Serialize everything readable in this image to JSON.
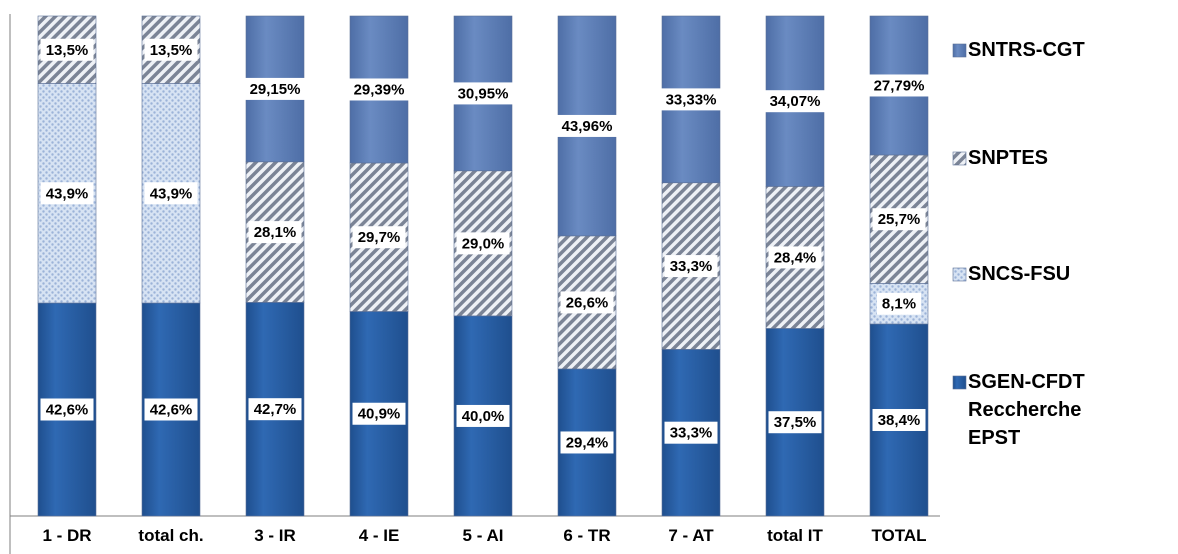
{
  "chart_data": {
    "type": "bar",
    "stacked": true,
    "percent": true,
    "categories": [
      "1 - DR",
      "total ch.",
      "3 - IR",
      "4 - IE",
      "5 - AI",
      "6 - TR",
      "7 - AT",
      "total IT",
      "TOTAL"
    ],
    "series": [
      {
        "name": "SGEN-CFDT Reccherche EPST",
        "legend_lines": [
          "SGEN-CFDT",
          "Reccherche",
          "EPST"
        ],
        "values": [
          42.6,
          42.6,
          42.7,
          40.9,
          40.0,
          29.4,
          33.3,
          37.5,
          38.4
        ],
        "labels": [
          "42,6%",
          "42,6%",
          "42,7%",
          "40,9%",
          "40,0%",
          "29,4%",
          "33,3%",
          "37,5%",
          "38,4%"
        ],
        "color": "#2e64a8",
        "pattern": "solid"
      },
      {
        "name": "SNCS-FSU",
        "legend_lines": [
          "SNCS-FSU"
        ],
        "values": [
          43.9,
          43.9,
          0,
          0,
          0,
          0,
          0,
          0,
          8.1
        ],
        "labels": [
          "43,9%",
          "43,9%",
          "",
          "",
          "",
          "",
          "",
          "",
          "8,1%"
        ],
        "color": "#b9cbe6",
        "pattern": "dots"
      },
      {
        "name": "SNPTES",
        "legend_lines": [
          "SNPTES"
        ],
        "values": [
          13.5,
          13.5,
          28.1,
          29.7,
          29.0,
          26.6,
          33.3,
          28.4,
          25.7
        ],
        "labels": [
          "13,5%",
          "13,5%",
          "28,1%",
          "29,7%",
          "29,0%",
          "26,6%",
          "33,3%",
          "28,4%",
          "25,7%"
        ],
        "color": "#8e96a6",
        "pattern": "hatch"
      },
      {
        "name": "SNTRS-CGT",
        "legend_lines": [
          "SNTRS-CGT"
        ],
        "values": [
          0,
          0,
          29.15,
          29.39,
          30.95,
          43.96,
          33.33,
          34.07,
          27.79
        ],
        "labels": [
          "",
          "",
          "29,15%",
          "29,39%",
          "30,95%",
          "43,96%",
          "33,33%",
          "34,07%",
          "27,79%"
        ],
        "color": "#5f7fb4",
        "pattern": "solid"
      }
    ],
    "legend_order": [
      "SNTRS-CGT",
      "SNPTES",
      "SNCS-FSU",
      "SGEN-CFDT Reccherche EPST"
    ],
    "legend_position": "right",
    "grid": false,
    "ylim": [
      0,
      100
    ]
  }
}
